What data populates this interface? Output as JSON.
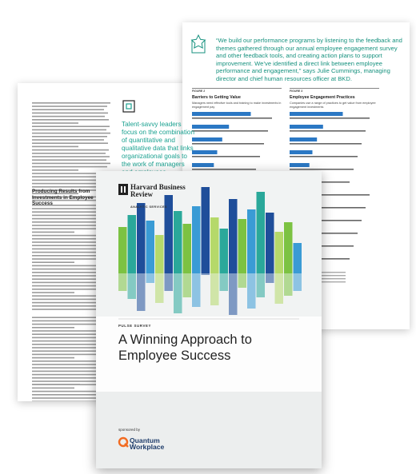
{
  "quote": "“We build our performance programs by listening to the feedback and themes gathered through our annual employee engagement survey and other feedback tools, and creating action plans to support improvement. We’ve identified a direct link between employee performance and engagement,” says Julie Cummings, managing director and chief human resources officer at BKD.",
  "left_page": {
    "heading": "Producing Results from Investments in Employee Success"
  },
  "callout": "Talent-savvy leaders focus on the combination of quantitative and qualitative data that links organizational goals to the work of managers and employees.",
  "figures": [
    {
      "label": "FIGURE 2",
      "title": "Barriers to Getting Value",
      "subtitle": "Managers need effective tools and training to make investments in engagement pay"
    },
    {
      "label": "FIGURE 3",
      "title": "Employee Engagement Practices",
      "subtitle": "Companies use a range of practices to get value from employee engagement investments"
    }
  ],
  "cover": {
    "brand": "Harvard Business Review",
    "division": "ANALYTIC SERVICES",
    "series": "PULSE SURVEY",
    "title": "A Winning Approach to Employee Success",
    "sponsor_label": "sponsored by",
    "sponsor": "Quantum Workplace"
  }
}
